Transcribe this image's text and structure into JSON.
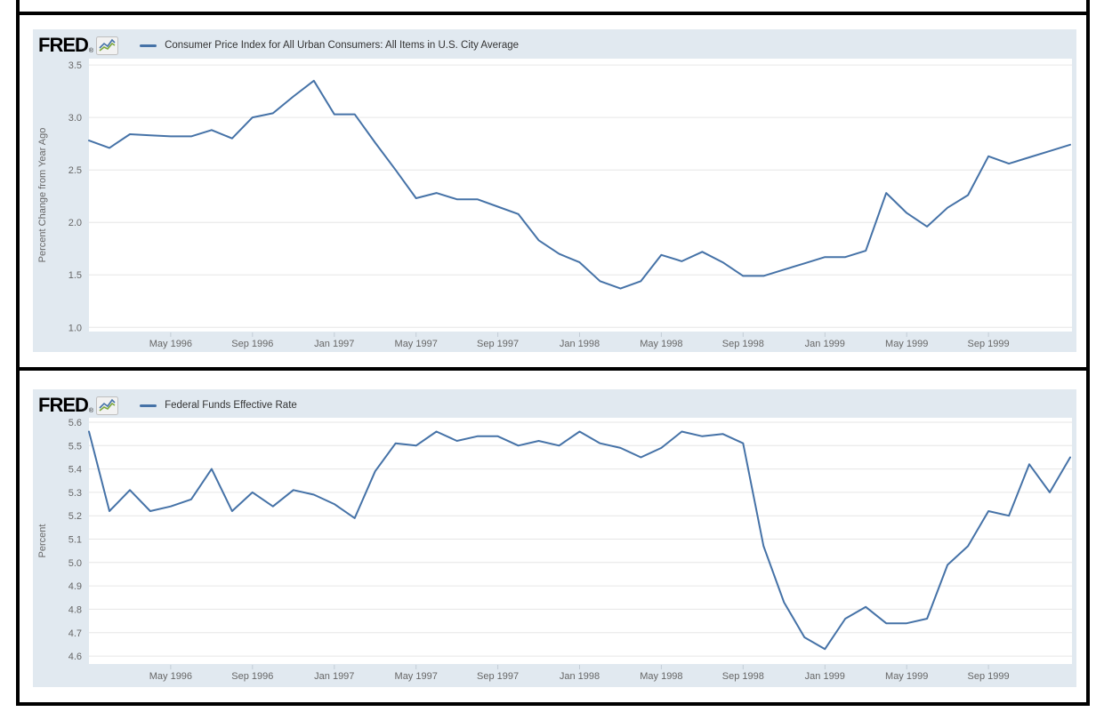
{
  "branding": {
    "logo_text": "FRED",
    "registered_mark": "®",
    "logo_icon": "fred-mini-line-chart",
    "accent_blue": "#4572a7",
    "accent_green": "#7da83c",
    "chart_background": "#e1e9f0"
  },
  "chart_data": [
    {
      "type": "line",
      "title": "Consumer Price Index for All Urban Consumers: All Items in U.S. City Average",
      "ylabel": "Percent Change from Year Ago",
      "frequency": "monthly",
      "x_start": "Jan 1996",
      "x_end": "Jan 2000",
      "x_tick_labels": [
        "May 1996",
        "Sep 1996",
        "Jan 1997",
        "May 1997",
        "Sep 1997",
        "Jan 1998",
        "May 1998",
        "Sep 1998",
        "Jan 1999",
        "May 1999",
        "Sep 1999"
      ],
      "x_tick_indices": [
        4,
        8,
        12,
        16,
        20,
        24,
        28,
        32,
        36,
        40,
        44
      ],
      "y_ticks": [
        1.0,
        1.5,
        2.0,
        2.5,
        3.0,
        3.5
      ],
      "ylim": [
        0.96,
        3.56
      ],
      "grid": true,
      "legend_position": "top",
      "series": [
        {
          "name": "Consumer Price Index for All Urban Consumers: All Items in U.S. City Average",
          "color": "#4572a7",
          "values": [
            2.78,
            2.71,
            2.84,
            2.83,
            2.82,
            2.82,
            2.88,
            2.8,
            3.0,
            3.04,
            3.2,
            3.35,
            3.03,
            3.03,
            2.76,
            2.5,
            2.23,
            2.28,
            2.22,
            2.22,
            2.15,
            2.08,
            1.83,
            1.7,
            1.62,
            1.44,
            1.37,
            1.44,
            1.69,
            1.63,
            1.72,
            1.62,
            1.49,
            1.49,
            1.55,
            1.61,
            1.67,
            1.67,
            1.73,
            2.28,
            2.09,
            1.96,
            2.14,
            2.26,
            2.63,
            2.56,
            2.62,
            2.68,
            2.74
          ]
        }
      ]
    },
    {
      "type": "line",
      "title": "Federal Funds Effective Rate",
      "ylabel": "Percent",
      "frequency": "monthly",
      "x_start": "Jan 1996",
      "x_end": "Jan 2000",
      "x_tick_labels": [
        "May 1996",
        "Sep 1996",
        "Jan 1997",
        "May 1997",
        "Sep 1997",
        "Jan 1998",
        "May 1998",
        "Sep 1998",
        "Jan 1999",
        "May 1999",
        "Sep 1999"
      ],
      "x_tick_indices": [
        4,
        8,
        12,
        16,
        20,
        24,
        28,
        32,
        36,
        40,
        44
      ],
      "y_ticks": [
        4.6,
        4.7,
        4.8,
        4.9,
        5.0,
        5.1,
        5.2,
        5.3,
        5.4,
        5.5,
        5.6
      ],
      "ylim": [
        4.566,
        5.619
      ],
      "grid": true,
      "legend_position": "top",
      "series": [
        {
          "name": "Federal Funds Effective Rate",
          "color": "#4572a7",
          "values": [
            5.56,
            5.22,
            5.31,
            5.22,
            5.24,
            5.27,
            5.4,
            5.22,
            5.3,
            5.24,
            5.31,
            5.29,
            5.25,
            5.19,
            5.39,
            5.51,
            5.5,
            5.56,
            5.52,
            5.54,
            5.54,
            5.5,
            5.52,
            5.5,
            5.56,
            5.51,
            5.49,
            5.45,
            5.49,
            5.56,
            5.54,
            5.55,
            5.51,
            5.07,
            4.83,
            4.68,
            4.63,
            4.76,
            4.81,
            4.74,
            4.74,
            4.76,
            4.99,
            5.07,
            5.22,
            5.2,
            5.42,
            5.3,
            5.45
          ]
        }
      ]
    }
  ]
}
